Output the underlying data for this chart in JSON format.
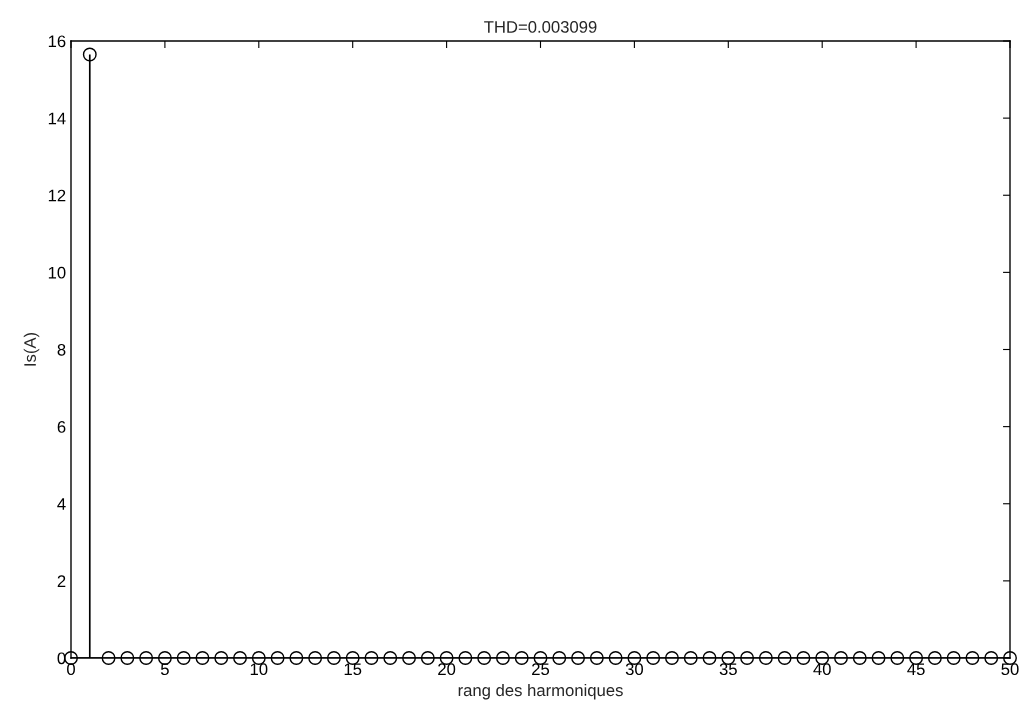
{
  "chart_data": {
    "type": "lollipop",
    "title": "THD=0.003099",
    "xlabel": "rang des harmoniques",
    "ylabel": "Is(A)",
    "x": [
      0,
      1,
      2,
      3,
      4,
      5,
      6,
      7,
      8,
      9,
      10,
      11,
      12,
      13,
      14,
      15,
      16,
      17,
      18,
      19,
      20,
      21,
      22,
      23,
      24,
      25,
      26,
      27,
      28,
      29,
      30,
      31,
      32,
      33,
      34,
      35,
      36,
      37,
      38,
      39,
      40,
      41,
      42,
      43,
      44,
      45,
      46,
      47,
      48,
      49,
      50
    ],
    "values": [
      0,
      15.65,
      0,
      0,
      0,
      0,
      0,
      0,
      0,
      0,
      0,
      0,
      0,
      0,
      0,
      0,
      0,
      0,
      0,
      0,
      0,
      0,
      0,
      0,
      0,
      0,
      0,
      0,
      0,
      0,
      0,
      0,
      0,
      0,
      0,
      0,
      0,
      0,
      0,
      0,
      0,
      0,
      0,
      0,
      0,
      0,
      0,
      0,
      0,
      0,
      0
    ],
    "color": "#000000",
    "marker": "circle",
    "xlim": [
      0,
      50
    ],
    "xticks": [
      0,
      5,
      10,
      15,
      20,
      25,
      30,
      35,
      40,
      45,
      50
    ],
    "ylim": [
      0,
      16
    ],
    "yticks": [
      0,
      2,
      4,
      6,
      8,
      10,
      12,
      14,
      16
    ]
  }
}
